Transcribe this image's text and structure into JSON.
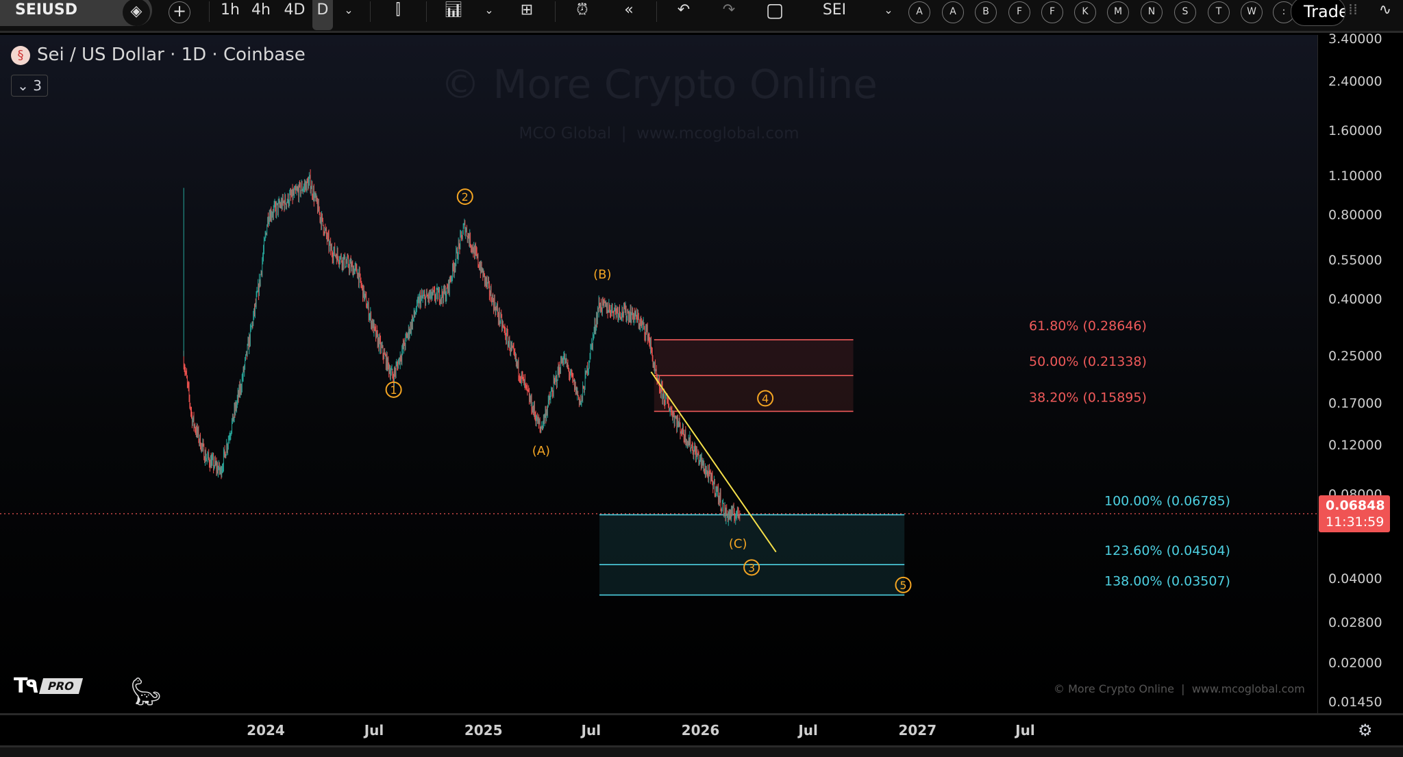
{
  "toolbar": {
    "symbol": "SEIUSD",
    "intervals": [
      "1h",
      "4h",
      "4D",
      "D"
    ],
    "active_interval": "D",
    "search_symbol": "SEI",
    "watch_circles": [
      "A",
      "A",
      "B",
      "F",
      "F",
      "K",
      "M",
      "N",
      "S",
      "T",
      "W",
      ":"
    ],
    "trade_label": "Trade"
  },
  "legend": {
    "title": "Sei / US Dollar · 1D · Coinbase",
    "indicator_toggle": "3"
  },
  "watermark": {
    "main": "© More Crypto Online",
    "sub": "MCO Global  |  www.mcoglobal.com",
    "footer": "© More Crypto Online  |  www.mcoglobal.com"
  },
  "logo": {
    "text": "TV PRO"
  },
  "price": {
    "current": "0.06848",
    "countdown": "11:31:59",
    "color": "#f05454"
  },
  "colors": {
    "up": "#26a69a",
    "down": "#ef5350",
    "fib_upper": "#f05a5a",
    "fib_lower": "#4dd0e1",
    "wave": "#f5a623",
    "trend": "#f5e04a"
  },
  "chart_data": {
    "type": "candlestick",
    "scale": "log",
    "yticks": [
      "3.40000",
      "2.40000",
      "1.60000",
      "1.10000",
      "0.80000",
      "0.55000",
      "0.40000",
      "0.25000",
      "0.17000",
      "0.12000",
      "0.08000",
      "0.04000",
      "0.02800",
      "0.02000",
      "0.01450"
    ],
    "xticks": [
      {
        "label": "2024",
        "date": "2024-01-01"
      },
      {
        "label": "Jul",
        "date": "2024-07-01"
      },
      {
        "label": "2025",
        "date": "2025-01-01"
      },
      {
        "label": "Jul",
        "date": "2025-07-01"
      },
      {
        "label": "2026",
        "date": "2026-01-01"
      },
      {
        "label": "Jul",
        "date": "2026-07-01"
      },
      {
        "label": "2027",
        "date": "2027-01-01"
      },
      {
        "label": "Jul",
        "date": "2027-07-01"
      }
    ],
    "price_path": [
      [
        "2023-08-16",
        0.25
      ],
      [
        "2023-08-31",
        0.15
      ],
      [
        "2023-09-22",
        0.11
      ],
      [
        "2023-10-18",
        0.097
      ],
      [
        "2023-11-22",
        0.2
      ],
      [
        "2023-12-22",
        0.45
      ],
      [
        "2024-01-06",
        0.8
      ],
      [
        "2024-02-20",
        0.95
      ],
      [
        "2024-03-16",
        1.05
      ],
      [
        "2024-04-20",
        0.6
      ],
      [
        "2024-06-04",
        0.5
      ],
      [
        "2024-07-04",
        0.3
      ],
      [
        "2024-08-03",
        0.21
      ],
      [
        "2024-09-17",
        0.4
      ],
      [
        "2024-11-01",
        0.42
      ],
      [
        "2024-12-01",
        0.73
      ],
      [
        "2025-01-08",
        0.45
      ],
      [
        "2025-02-22",
        0.25
      ],
      [
        "2025-04-08",
        0.137
      ],
      [
        "2025-05-16",
        0.25
      ],
      [
        "2025-06-15",
        0.17
      ],
      [
        "2025-07-15",
        0.38
      ],
      [
        "2025-09-13",
        0.35
      ],
      [
        "2025-10-06",
        0.3
      ],
      [
        "2025-10-21",
        0.2
      ],
      [
        "2025-11-28",
        0.14
      ],
      [
        "2025-12-28",
        0.11
      ],
      [
        "2026-01-27",
        0.085
      ],
      [
        "2026-02-13",
        0.068
      ],
      [
        "2026-03-09",
        0.06848
      ]
    ],
    "fib_upper": {
      "from": "2025-10-15",
      "to": "2026-09-15",
      "levels": [
        {
          "label": "61.80% (0.28646)",
          "value": 0.28646
        },
        {
          "label": "50.00% (0.21338)",
          "value": 0.21338
        },
        {
          "label": "38.20% (0.15895)",
          "value": 0.15895
        }
      ]
    },
    "fib_lower": {
      "from": "2025-07-15",
      "to": "2026-12-10",
      "levels": [
        {
          "label": "100.00% (0.06785)",
          "value": 0.06785
        },
        {
          "label": "123.60% (0.04504)",
          "value": 0.04504
        },
        {
          "label": "138.00% (0.03507)",
          "value": 0.03507
        }
      ]
    },
    "trendline": [
      [
        "2025-10-10",
        0.22
      ],
      [
        "2026-05-08",
        0.05
      ]
    ],
    "wave_labels": [
      {
        "label": "1",
        "circled": true,
        "date": "2024-08-03",
        "value": 0.19
      },
      {
        "label": "2",
        "circled": true,
        "date": "2024-12-01",
        "value": 0.93
      },
      {
        "label": "(A)",
        "circled": false,
        "date": "2025-04-08",
        "value": 0.115
      },
      {
        "label": "(B)",
        "circled": false,
        "date": "2025-07-20",
        "value": 0.49
      },
      {
        "label": "4",
        "circled": true,
        "date": "2026-04-20",
        "value": 0.177
      },
      {
        "label": "(C)",
        "circled": false,
        "date": "2026-03-05",
        "value": 0.0535
      },
      {
        "label": "3",
        "circled": true,
        "date": "2026-03-28",
        "value": 0.044
      },
      {
        "label": "5",
        "circled": true,
        "date": "2026-12-08",
        "value": 0.0381
      }
    ]
  }
}
